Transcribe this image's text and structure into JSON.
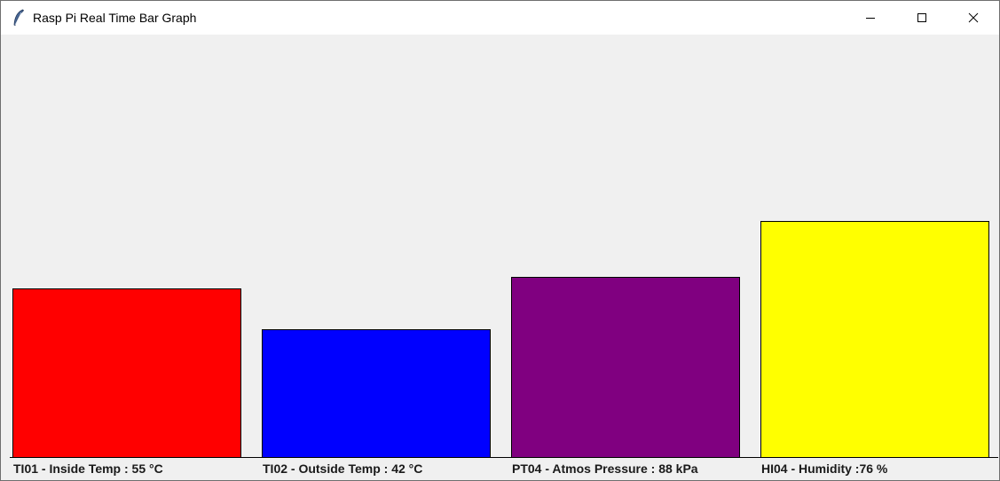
{
  "window": {
    "title": "Rasp Pi Real Time Bar Graph",
    "app_icon": "feather-icon",
    "controls": [
      "minimize-icon",
      "maximize-icon",
      "close-icon"
    ]
  },
  "chart_data": {
    "type": "bar",
    "categories": [
      "TI01 - Inside Temp",
      "TI02 - Outside Temp",
      "PT04 - Atmos Pressure",
      "HI04 - Humidity"
    ],
    "values": [
      55,
      42,
      88,
      76
    ],
    "labels": [
      "TI01 - Inside Temp : 55 °C",
      "TI02 - Outside Temp : 42 °C",
      "PT04 - Atmos Pressure : 88 kPa",
      "HI04 - Humidity :76 %"
    ],
    "bar_heights": [
      0.5,
      0.38,
      0.535,
      0.7
    ],
    "colors": [
      "#ff0000",
      "#0000ff",
      "#800080",
      "#ffff00"
    ],
    "title": "",
    "xlabel": "",
    "ylabel": "",
    "grid": false
  }
}
